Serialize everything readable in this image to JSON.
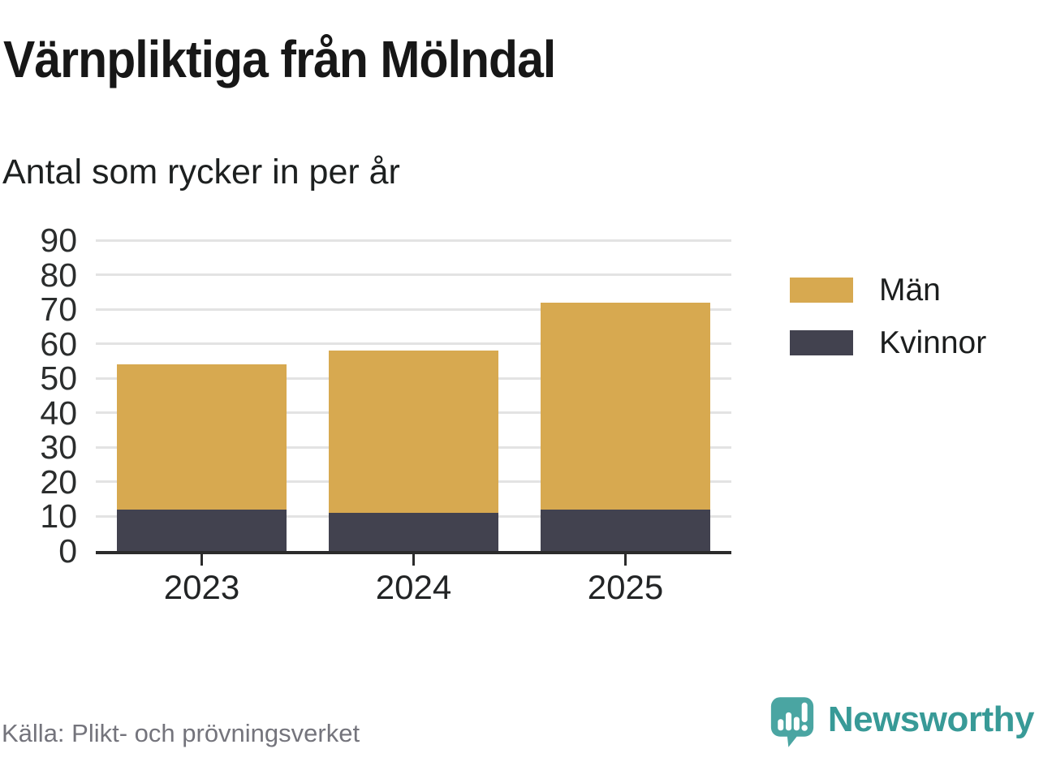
{
  "header": {
    "title": "Värnpliktiga från Mölndal",
    "subtitle": "Antal som rycker in per år"
  },
  "chart_data": {
    "type": "bar",
    "stacked": true,
    "title": "Värnpliktiga från Mölndal",
    "subtitle": "Antal som rycker in per år",
    "categories": [
      "2023",
      "2024",
      "2025"
    ],
    "series": [
      {
        "name": "Kvinnor",
        "color": "#42424f",
        "values": [
          12,
          11,
          12
        ]
      },
      {
        "name": "Män",
        "color": "#d7a950",
        "values": [
          42,
          47,
          60
        ]
      }
    ],
    "stack_totals": [
      54,
      58,
      72
    ],
    "xlabel": "",
    "ylabel": "",
    "ylim": [
      0,
      90
    ],
    "yticks": [
      0,
      10,
      20,
      30,
      40,
      50,
      60,
      70,
      80,
      90
    ],
    "grid": true,
    "legend_position": "right"
  },
  "legend": {
    "items": [
      {
        "label": "Män",
        "color": "#d7a950"
      },
      {
        "label": "Kvinnor",
        "color": "#42424f"
      }
    ]
  },
  "footer": {
    "source": "Källa: Plikt- och prövningsverket",
    "brand": "Newsworthy"
  },
  "colors": {
    "men_gold": "#d7a950",
    "women_dark": "#42424f",
    "axis": "#2b2b2b",
    "gridline": "#e3e3e3",
    "brand_teal": "#389a97",
    "brand_icon_teal": "#4aa5a2",
    "source_gray": "#74747c"
  }
}
